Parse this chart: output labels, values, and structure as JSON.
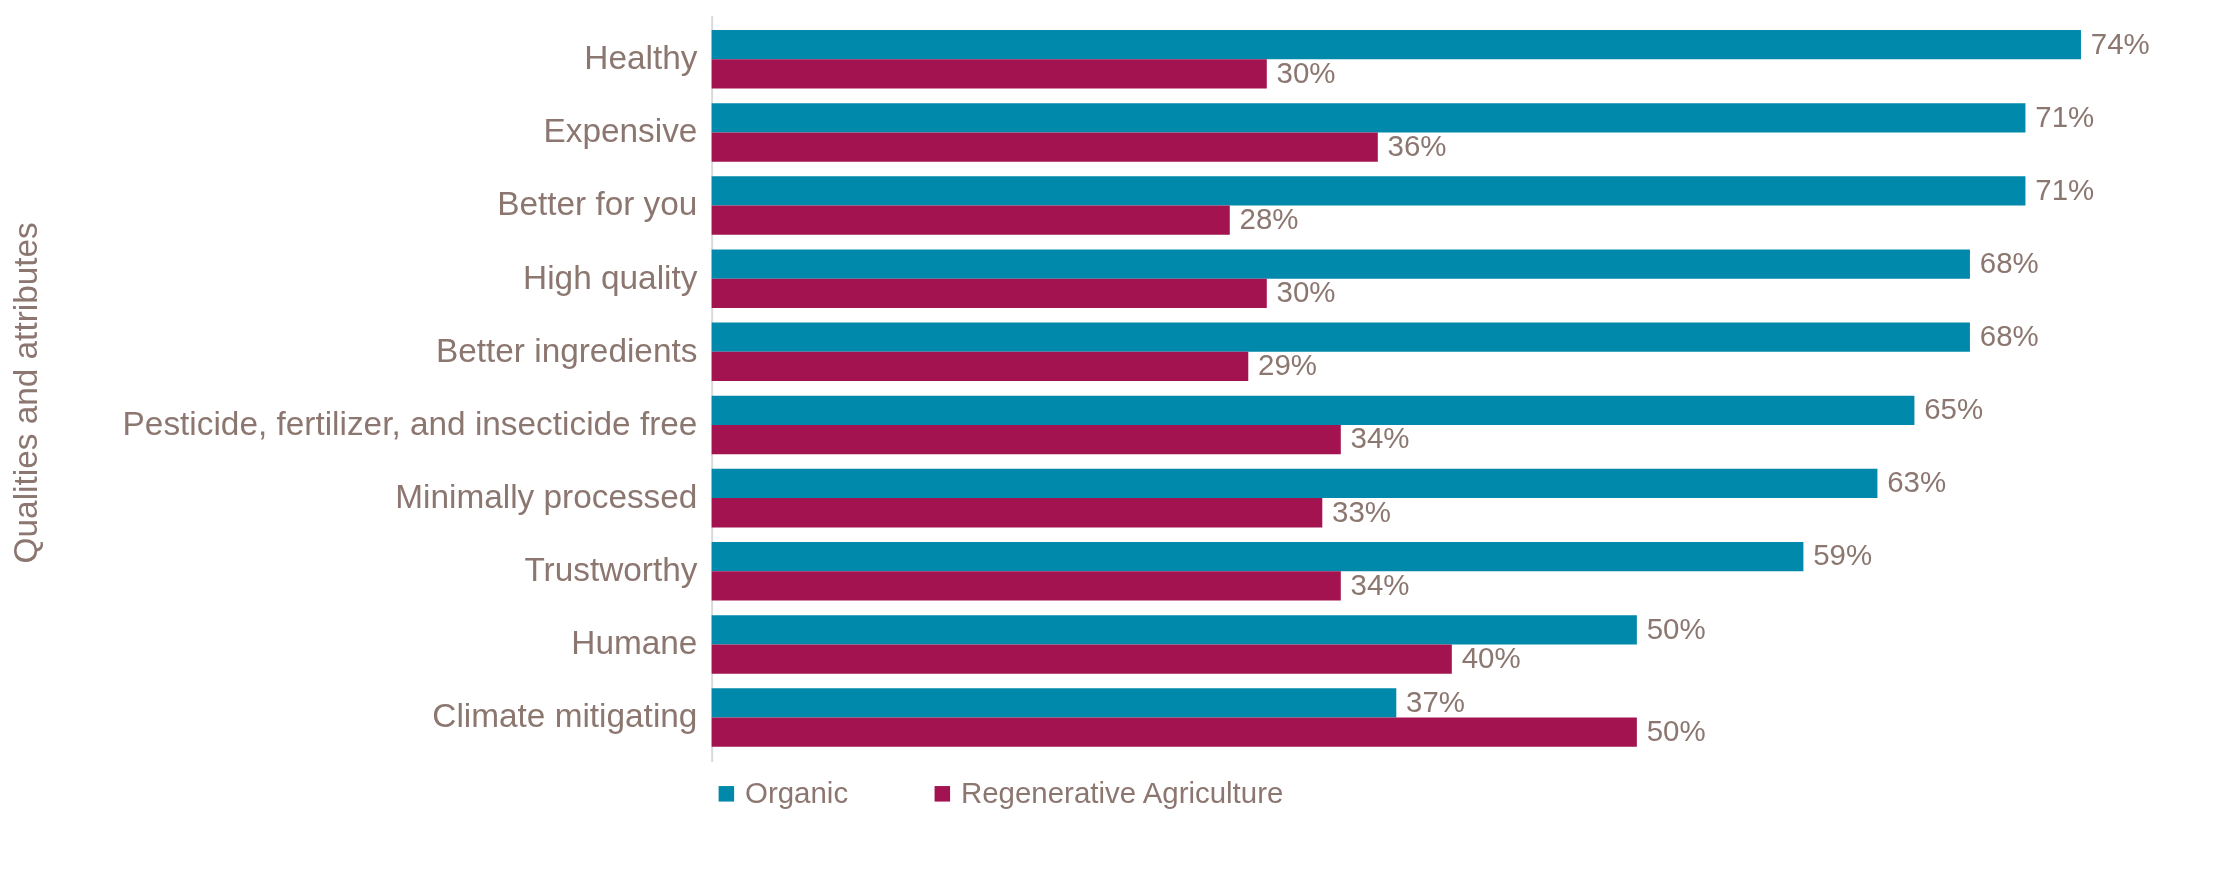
{
  "chart_data": {
    "type": "bar",
    "orientation": "horizontal",
    "ylabel": "Qualities and attributes",
    "categories": [
      "Healthy",
      "Expensive",
      "Better for you",
      "High quality",
      "Better ingredients",
      "Pesticide, fertilizer, and insecticide free",
      "Minimally processed",
      "Trustworthy",
      "Humane",
      "Climate mitigating"
    ],
    "series": [
      {
        "name": "Organic",
        "color": "#0089ab",
        "values": [
          74,
          71,
          71,
          68,
          68,
          65,
          63,
          59,
          50,
          37
        ],
        "value_labels": [
          "74%",
          "71%",
          "71%",
          "68%",
          "68%",
          "65%",
          "63%",
          "59%",
          "50%",
          "37%"
        ]
      },
      {
        "name": "Regenerative Agriculture",
        "color": "#a3134f",
        "values": [
          30,
          36,
          28,
          30,
          29,
          34,
          33,
          34,
          40,
          50
        ],
        "value_labels": [
          "30%",
          "36%",
          "28%",
          "30%",
          "29%",
          "34%",
          "33%",
          "34%",
          "40%",
          "50%"
        ]
      }
    ],
    "legend": "bottom",
    "grid": false
  }
}
